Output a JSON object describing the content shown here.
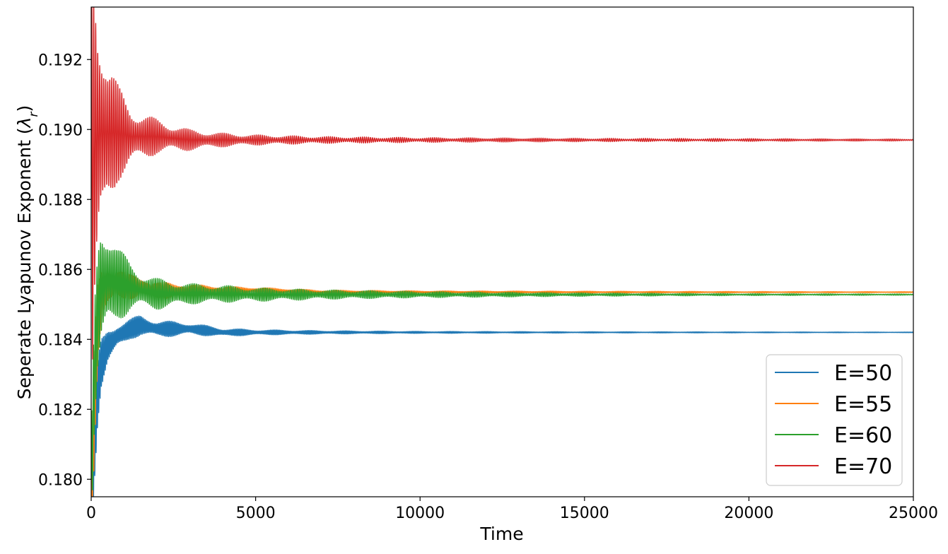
{
  "chart_data": {
    "type": "line",
    "title": "",
    "xlabel": "Time",
    "ylabel": "Seperate Lyapunov Exponent (",
    "ylabel_symbol": "λ",
    "ylabel_subscript": "r",
    "ylabel_close": ")",
    "xlim": [
      0,
      25000
    ],
    "ylim": [
      0.1795,
      0.1935
    ],
    "xticks": [
      0,
      5000,
      10000,
      15000,
      20000,
      25000
    ],
    "xtick_labels": [
      "0",
      "5000",
      "10000",
      "15000",
      "20000",
      "25000"
    ],
    "yticks": [
      0.18,
      0.182,
      0.184,
      0.186,
      0.188,
      0.19,
      0.192
    ],
    "ytick_labels": [
      "0.180",
      "0.182",
      "0.184",
      "0.186",
      "0.188",
      "0.190",
      "0.192"
    ],
    "grid": false,
    "legend_position": "lower-right",
    "series": [
      {
        "name": "E=50",
        "color": "#1f77b4",
        "x": [
          0,
          100,
          200,
          300,
          500,
          800,
          1200,
          1500,
          2000,
          3000,
          4000,
          5000,
          7000,
          10000,
          15000,
          20000,
          25000
        ],
        "mean": [
          0.179,
          0.181,
          0.1825,
          0.1833,
          0.1838,
          0.1841,
          0.1843,
          0.1844,
          0.1843,
          0.1843,
          0.1842,
          0.1842,
          0.1842,
          0.1842,
          0.1842,
          0.1842,
          0.1842
        ],
        "amp": [
          0.001,
          0.0012,
          0.0009,
          0.0007,
          0.0005,
          0.0004,
          0.0003,
          0.0003,
          0.00025,
          0.00018,
          0.00012,
          8e-05,
          5e-05,
          3e-05,
          2e-05,
          1.5e-05,
          1e-05
        ]
      },
      {
        "name": "E=55",
        "color": "#ff7f0e",
        "x": [
          0,
          100,
          200,
          300,
          500,
          800,
          1200,
          1500,
          2000,
          3000,
          4000,
          5000,
          7000,
          10000,
          15000,
          20000,
          25000
        ],
        "mean": [
          0.179,
          0.1822,
          0.1845,
          0.1852,
          0.1855,
          0.1856,
          0.1855,
          0.1855,
          0.1854,
          0.1854,
          0.1854,
          0.1854,
          0.18535,
          0.18535,
          0.18535,
          0.18535,
          0.18535
        ],
        "amp": [
          0.0015,
          0.0014,
          0.0011,
          0.0009,
          0.0007,
          0.0005,
          0.00035,
          0.0003,
          0.00025,
          0.00018,
          0.00012,
          9e-05,
          6e-05,
          4e-05,
          3e-05,
          2e-05,
          1.5e-05
        ]
      },
      {
        "name": "E=60",
        "color": "#2ca02c",
        "x": [
          0,
          100,
          200,
          300,
          500,
          800,
          1200,
          1500,
          2000,
          3000,
          4000,
          5000,
          7000,
          10000,
          15000,
          20000,
          25000
        ],
        "mean": [
          0.18,
          0.1832,
          0.1848,
          0.1855,
          0.1857,
          0.1856,
          0.1855,
          0.1854,
          0.1853,
          0.1853,
          0.1853,
          0.18528,
          0.18528,
          0.18528,
          0.18528,
          0.18528,
          0.18528
        ],
        "amp": [
          0.0015,
          0.002,
          0.0022,
          0.0022,
          0.0017,
          0.0011,
          0.0007,
          0.00055,
          0.00045,
          0.0003,
          0.00025,
          0.0002,
          0.00014,
          9e-05,
          5e-05,
          3e-05,
          2e-05
        ]
      },
      {
        "name": "E=70",
        "color": "#d62728",
        "x": [
          0,
          100,
          200,
          300,
          500,
          800,
          1200,
          1500,
          2000,
          3000,
          4000,
          5000,
          7000,
          10000,
          15000,
          20000,
          25000
        ],
        "mean": [
          0.188,
          0.1895,
          0.1898,
          0.1899,
          0.1899,
          0.1899,
          0.1898,
          0.1898,
          0.1898,
          0.1897,
          0.1897,
          0.1897,
          0.1897,
          0.1897,
          0.1897,
          0.1897,
          0.1897
        ],
        "amp": [
          0.008,
          0.0065,
          0.0045,
          0.0035,
          0.0022,
          0.0014,
          0.0009,
          0.0007,
          0.0005,
          0.0003,
          0.0002,
          0.00015,
          0.0001,
          7e-05,
          5e-05,
          4e-05,
          3e-05
        ]
      }
    ]
  }
}
